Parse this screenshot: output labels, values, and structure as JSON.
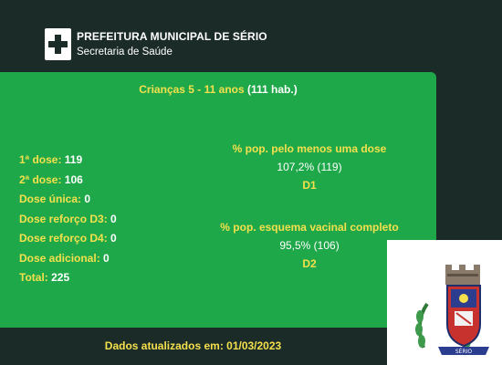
{
  "header": {
    "icon": "plus-icon",
    "title": "PREFEITURA MUNICIPAL DE SÉRIO",
    "subtitle": "Secretaria de Saúde"
  },
  "panel": {
    "title": "Crianças 5 - 11 anos",
    "total_hab": "(111 hab.)",
    "doses": [
      {
        "label": "1ª dose:",
        "value": "119"
      },
      {
        "label": "2ª dose:",
        "value": "106"
      },
      {
        "label": "Dose única:",
        "value": "0"
      },
      {
        "label": "Dose reforço D3:",
        "value": "0"
      },
      {
        "label": "Dose reforço D4:",
        "value": "0"
      },
      {
        "label": "Dose adicional:",
        "value": "0"
      },
      {
        "label": "Total:",
        "value": "225"
      }
    ],
    "stats": [
      {
        "label": "% pop. pelo menos uma dose",
        "value": "107,2% (119)",
        "code": "D1"
      },
      {
        "label": "% pop. esquema vacinal completo",
        "value": "95,5% (106)",
        "code": "D2"
      }
    ]
  },
  "footer": {
    "updated": "Dados atualizados em: 01/03/2023"
  },
  "crest": {
    "icon": "municipal-crest-icon",
    "banner_text": "SÉRIO"
  },
  "colors": {
    "background": "#1b2b28",
    "panel": "#1fa84a",
    "accent_yellow": "#f4e04d",
    "text_white": "#ffffff"
  }
}
